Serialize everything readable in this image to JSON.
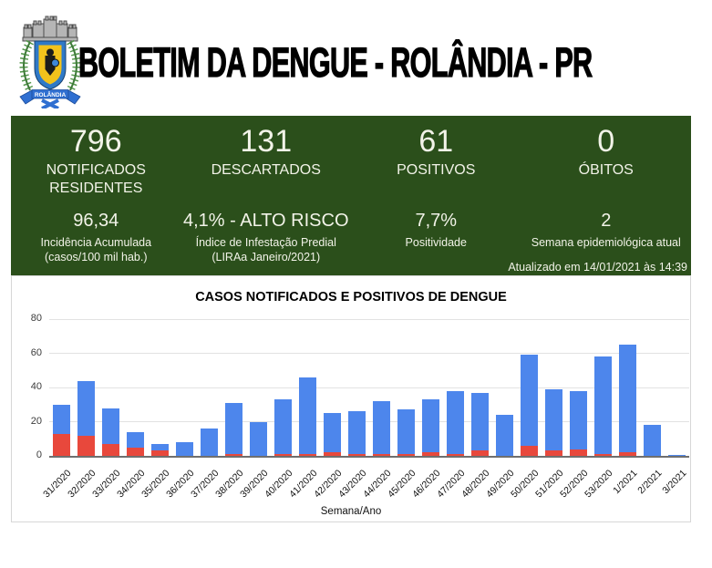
{
  "header": {
    "title": "BOLETIM DA DENGUE - ROLÂNDIA - PR",
    "logo": {
      "name": "rolandia-coat-of-arms",
      "banner_text": "ROLÂNDIA",
      "colors": {
        "shield_border": "#2f79c8",
        "shield_field": "#f2c21c",
        "branches": "#55984d",
        "crown": "#b5b5b5",
        "ribbon": "#2f6fd1"
      }
    }
  },
  "summary_panel": {
    "bg_color": "#2b4f1b",
    "text_color": "#f2f3e8",
    "stats_row1": [
      {
        "value": "796",
        "label": "NOTIFICADOS RESIDENTES"
      },
      {
        "value": "131",
        "label": "DESCARTADOS"
      },
      {
        "value": "61",
        "label": "POSITIVOS"
      },
      {
        "value": "0",
        "label": "ÓBITOS"
      }
    ],
    "stats_row2": [
      {
        "value": "96,34",
        "label": "Incidência Acumulada (casos/100 mil hab.)"
      },
      {
        "value": "4,1% - ALTO RISCO",
        "label": "Índice de Infestação Predial (LIRAa Janeiro/2021)"
      },
      {
        "value": "7,7%",
        "label": "Positividade"
      },
      {
        "value": "2",
        "label": "Semana epidemiológica atual"
      }
    ],
    "updated_text": "Atualizado em 14/01/2021 às 14:39"
  },
  "chart_data": {
    "type": "bar",
    "stacked": true,
    "title": "CASOS NOTIFICADOS E POSITIVOS DE DENGUE",
    "xlabel": "Semana/Ano",
    "ylabel": "",
    "ylim": [
      0,
      80
    ],
    "yticks": [
      0,
      20,
      40,
      60,
      80
    ],
    "grid": true,
    "legend": "none",
    "categories": [
      "31/2020",
      "32/2020",
      "33/2020",
      "34/2020",
      "35/2020",
      "36/2020",
      "37/2020",
      "38/2020",
      "39/2020",
      "40/2020",
      "41/2020",
      "42/2020",
      "43/2020",
      "44/2020",
      "45/2020",
      "46/2020",
      "47/2020",
      "48/2020",
      "49/2020",
      "50/2020",
      "51/2020",
      "52/2020",
      "53/2020",
      "1/2021",
      "2/2021",
      "3/2021"
    ],
    "series": [
      {
        "name": "Positivos",
        "color": "#e8483c",
        "values": [
          13,
          12,
          7,
          5,
          3,
          0,
          0,
          1,
          0,
          1,
          1,
          2,
          1,
          1,
          1,
          2,
          1,
          3,
          0,
          6,
          3,
          4,
          1,
          2,
          0,
          0
        ]
      },
      {
        "name": "Notificados",
        "color": "#4d86ec",
        "values": [
          17,
          32,
          21,
          9,
          4,
          8,
          16,
          30,
          20,
          32,
          45,
          23,
          25,
          31,
          26,
          31,
          37,
          34,
          24,
          53,
          36,
          34,
          57,
          63,
          18,
          0.5
        ]
      }
    ],
    "totals": [
      30,
      44,
      28,
      14,
      7,
      8,
      16,
      31,
      20,
      33,
      46,
      25,
      26,
      32,
      27,
      33,
      38,
      37,
      24,
      59,
      39,
      38,
      58,
      65,
      18,
      0.5
    ]
  }
}
